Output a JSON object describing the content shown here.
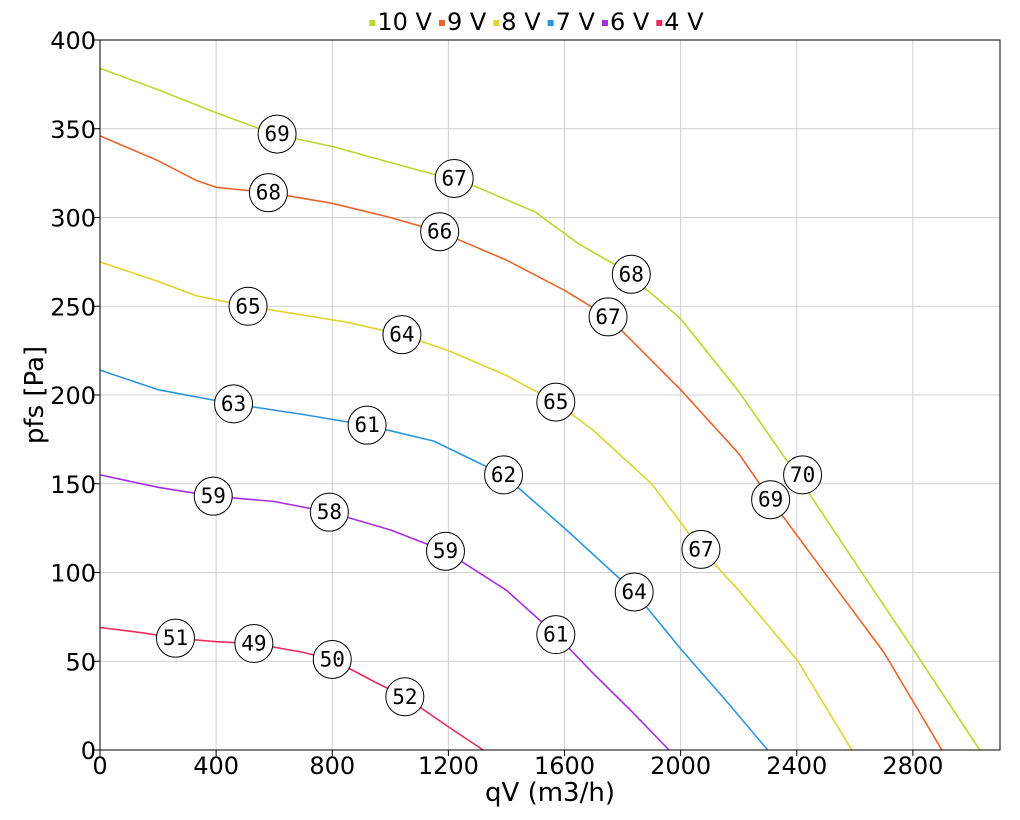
{
  "chart_data": {
    "type": "line",
    "title": "",
    "xlabel": "qV (m3/h)",
    "ylabel": "pfs [Pa]",
    "xlim": [
      0,
      3100
    ],
    "ylim": [
      0,
      400
    ],
    "xticks": [
      0,
      400,
      800,
      1200,
      1600,
      2000,
      2400,
      2800
    ],
    "yticks": [
      0,
      50,
      100,
      150,
      200,
      250,
      300,
      350,
      400
    ],
    "grid": true,
    "legend_position": "top-center",
    "series": [
      {
        "name": "10 V",
        "color": "#bcd62c",
        "points": [
          [
            0,
            384
          ],
          [
            200,
            372
          ],
          [
            400,
            359
          ],
          [
            600,
            347
          ],
          [
            800,
            340
          ],
          [
            1000,
            331
          ],
          [
            1200,
            322
          ],
          [
            1300,
            317
          ],
          [
            1500,
            303
          ],
          [
            1650,
            285
          ],
          [
            1800,
            271
          ],
          [
            2000,
            243
          ],
          [
            2200,
            202
          ],
          [
            2400,
            155
          ],
          [
            2600,
            106
          ],
          [
            2800,
            57
          ],
          [
            3030,
            0
          ]
        ],
        "labels": [
          {
            "x": 610,
            "y": 347,
            "text": "69"
          },
          {
            "x": 1220,
            "y": 322,
            "text": "67"
          },
          {
            "x": 1830,
            "y": 268,
            "text": "68"
          },
          {
            "x": 2420,
            "y": 155,
            "text": "70"
          }
        ]
      },
      {
        "name": "9 V",
        "color": "#e8642c",
        "points": [
          [
            0,
            346
          ],
          [
            200,
            332
          ],
          [
            330,
            321
          ],
          [
            400,
            317
          ],
          [
            580,
            314
          ],
          [
            800,
            308
          ],
          [
            1000,
            300
          ],
          [
            1170,
            292
          ],
          [
            1400,
            276
          ],
          [
            1600,
            259
          ],
          [
            1750,
            244
          ],
          [
            2000,
            203
          ],
          [
            2200,
            167
          ],
          [
            2310,
            141
          ],
          [
            2500,
            99
          ],
          [
            2700,
            55
          ],
          [
            2900,
            0
          ]
        ],
        "labels": [
          {
            "x": 580,
            "y": 314,
            "text": "68"
          },
          {
            "x": 1170,
            "y": 292,
            "text": "66"
          },
          {
            "x": 1750,
            "y": 244,
            "text": "67"
          },
          {
            "x": 2310,
            "y": 141,
            "text": "69"
          }
        ]
      },
      {
        "name": "8 V",
        "color": "#e0d42c",
        "points": [
          [
            0,
            275
          ],
          [
            200,
            264
          ],
          [
            330,
            256
          ],
          [
            510,
            250
          ],
          [
            700,
            245
          ],
          [
            850,
            241
          ],
          [
            1040,
            234
          ],
          [
            1200,
            225
          ],
          [
            1400,
            211
          ],
          [
            1570,
            196
          ],
          [
            1700,
            180
          ],
          [
            1900,
            150
          ],
          [
            2070,
            113
          ],
          [
            2200,
            90
          ],
          [
            2400,
            51
          ],
          [
            2590,
            0
          ]
        ],
        "labels": [
          {
            "x": 510,
            "y": 250,
            "text": "65"
          },
          {
            "x": 1040,
            "y": 234,
            "text": "64"
          },
          {
            "x": 1570,
            "y": 196,
            "text": "65"
          },
          {
            "x": 2070,
            "y": 113,
            "text": "67"
          }
        ]
      },
      {
        "name": "7 V",
        "color": "#2c96dc",
        "points": [
          [
            0,
            214
          ],
          [
            200,
            203
          ],
          [
            460,
            195
          ],
          [
            700,
            189
          ],
          [
            920,
            183
          ],
          [
            1150,
            174
          ],
          [
            1390,
            155
          ],
          [
            1600,
            125
          ],
          [
            1840,
            89
          ],
          [
            2000,
            57
          ],
          [
            2150,
            29
          ],
          [
            2300,
            0
          ]
        ],
        "labels": [
          {
            "x": 460,
            "y": 195,
            "text": "63"
          },
          {
            "x": 920,
            "y": 183,
            "text": "61"
          },
          {
            "x": 1390,
            "y": 155,
            "text": "62"
          },
          {
            "x": 1840,
            "y": 89,
            "text": "64"
          }
        ]
      },
      {
        "name": "6 V",
        "color": "#a82ce0",
        "points": [
          [
            0,
            155
          ],
          [
            200,
            148
          ],
          [
            390,
            143
          ],
          [
            600,
            140
          ],
          [
            790,
            134
          ],
          [
            1000,
            124
          ],
          [
            1190,
            112
          ],
          [
            1400,
            90
          ],
          [
            1570,
            65
          ],
          [
            1700,
            43
          ],
          [
            1830,
            22
          ],
          [
            1960,
            0
          ]
        ],
        "labels": [
          {
            "x": 390,
            "y": 143,
            "text": "59"
          },
          {
            "x": 790,
            "y": 134,
            "text": "58"
          },
          {
            "x": 1190,
            "y": 112,
            "text": "59"
          },
          {
            "x": 1570,
            "y": 65,
            "text": "61"
          }
        ]
      },
      {
        "name": "4 V",
        "color": "#e82c5c",
        "points": [
          [
            0,
            69
          ],
          [
            150,
            66
          ],
          [
            260,
            63
          ],
          [
            400,
            61
          ],
          [
            530,
            60
          ],
          [
            700,
            55
          ],
          [
            800,
            51
          ],
          [
            950,
            38
          ],
          [
            1050,
            30
          ],
          [
            1200,
            13
          ],
          [
            1320,
            0
          ]
        ],
        "labels": [
          {
            "x": 260,
            "y": 63,
            "text": "51"
          },
          {
            "x": 530,
            "y": 60,
            "text": "49"
          },
          {
            "x": 800,
            "y": 51,
            "text": "50"
          },
          {
            "x": 1050,
            "y": 30,
            "text": "52"
          }
        ]
      }
    ]
  }
}
